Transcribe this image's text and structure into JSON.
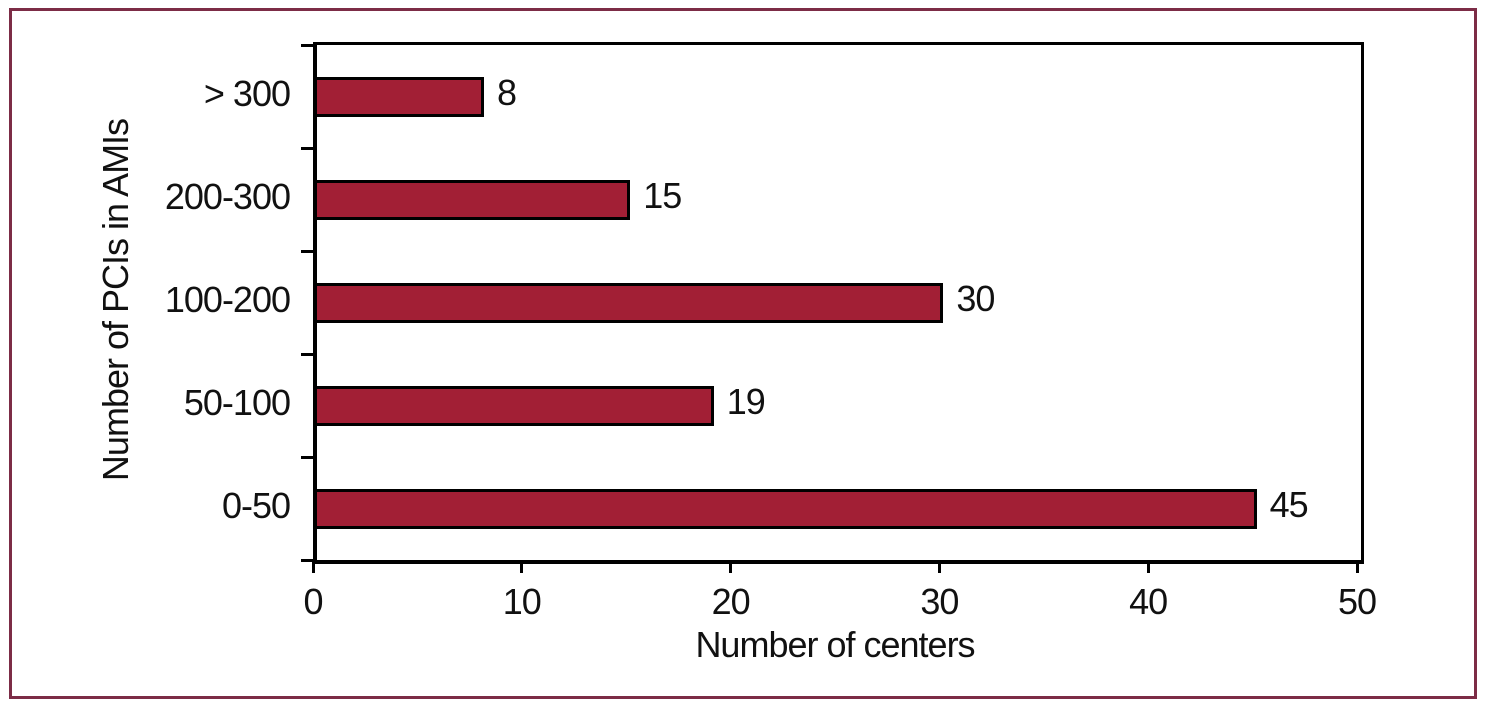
{
  "figure": {
    "background_color": "#ffffff",
    "frame_color": "#7c2c46"
  },
  "chart_data": {
    "type": "bar",
    "orientation": "horizontal",
    "title": "",
    "categories": [
      "> 300",
      "200-300",
      "100-200",
      "50-100",
      "0-50"
    ],
    "values": [
      8,
      15,
      30,
      19,
      45
    ],
    "value_labels": [
      "8",
      "15",
      "30",
      "19",
      "45"
    ],
    "xlabel": "Number of centers",
    "ylabel": "Number of PCIs in AMIs",
    "xlim": [
      0,
      50
    ],
    "x_ticks": [
      0,
      10,
      20,
      30,
      40,
      50
    ],
    "grid": false,
    "legend": "none",
    "bar_color": "#a21f35",
    "bar_border_color": "#000000",
    "axis_color": "#000000",
    "text_color": "#111111"
  }
}
